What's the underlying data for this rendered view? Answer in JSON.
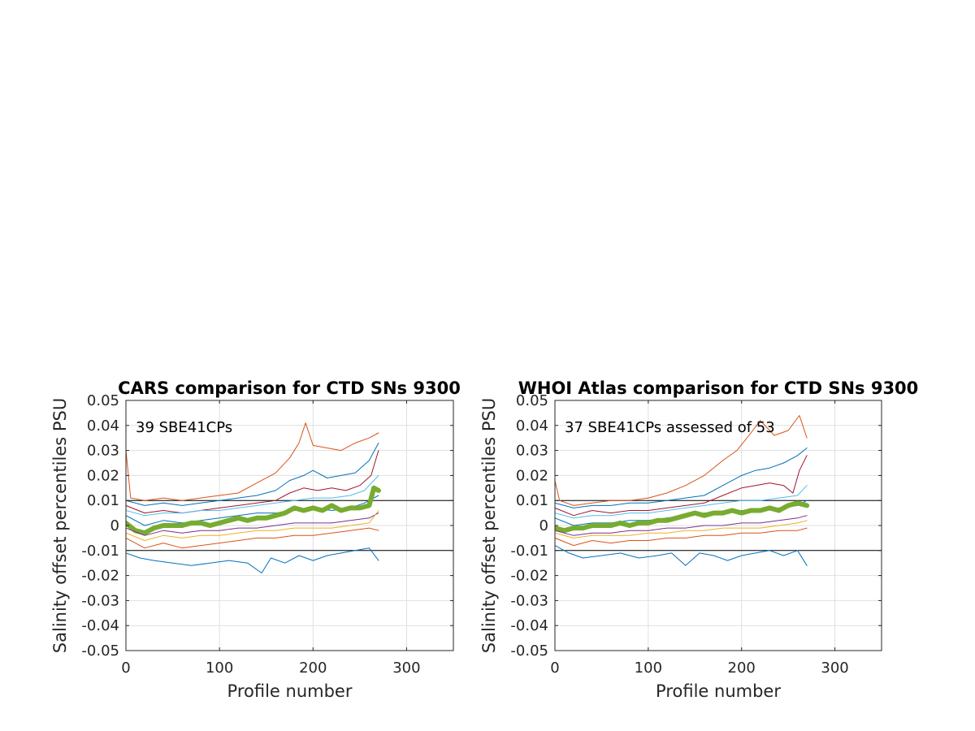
{
  "chart_data": [
    {
      "type": "line",
      "title": "CARS comparison for CTD SNs 9300",
      "xlabel": "Profile number",
      "ylabel": "Salinity offset percentiles PSU",
      "xlim": [
        0,
        350
      ],
      "ylim": [
        -0.05,
        0.05
      ],
      "xticks": [
        0,
        100,
        200,
        300
      ],
      "yticks": [
        -0.05,
        -0.04,
        -0.03,
        -0.02,
        -0.01,
        0,
        0.01,
        0.02,
        0.03,
        0.04,
        0.05
      ],
      "xtick_labels": [
        "0",
        "100",
        "200",
        "300"
      ],
      "ytick_labels": [
        "-0.05",
        "-0.04",
        "-0.03",
        "-0.02",
        "-0.01",
        "0",
        "0.01",
        "0.02",
        "0.03",
        "0.04",
        "0.05"
      ],
      "grid": true,
      "reference_lines_y": [
        0.01,
        -0.01
      ],
      "annotation": "39 SBE41CPs",
      "series": [
        {
          "color": "#D95319",
          "width": 1,
          "x": [
            0,
            5,
            20,
            40,
            60,
            80,
            100,
            120,
            140,
            160,
            175,
            185,
            192,
            200,
            215,
            230,
            245,
            260,
            270
          ],
          "values": [
            0.03,
            0.011,
            0.01,
            0.011,
            0.01,
            0.011,
            0.012,
            0.013,
            0.017,
            0.021,
            0.027,
            0.033,
            0.041,
            0.032,
            0.031,
            0.03,
            0.033,
            0.035,
            0.037
          ]
        },
        {
          "color": "#0072BD",
          "width": 1,
          "x": [
            0,
            20,
            40,
            60,
            80,
            100,
            120,
            140,
            160,
            175,
            190,
            200,
            215,
            230,
            245,
            260,
            270
          ],
          "values": [
            0.01,
            0.008,
            0.009,
            0.008,
            0.009,
            0.01,
            0.011,
            0.012,
            0.014,
            0.018,
            0.02,
            0.022,
            0.019,
            0.02,
            0.021,
            0.026,
            0.033
          ]
        },
        {
          "color": "#A2142F",
          "width": 1,
          "x": [
            0,
            20,
            40,
            60,
            80,
            100,
            120,
            140,
            160,
            175,
            190,
            205,
            220,
            235,
            250,
            262,
            270
          ],
          "values": [
            0.008,
            0.005,
            0.006,
            0.005,
            0.006,
            0.007,
            0.008,
            0.009,
            0.01,
            0.013,
            0.015,
            0.014,
            0.015,
            0.014,
            0.016,
            0.02,
            0.03
          ]
        },
        {
          "color": "#4DBEEE",
          "width": 1,
          "x": [
            0,
            20,
            40,
            60,
            80,
            100,
            120,
            140,
            160,
            180,
            200,
            220,
            240,
            255,
            270
          ],
          "values": [
            0.006,
            0.004,
            0.005,
            0.005,
            0.006,
            0.006,
            0.007,
            0.008,
            0.009,
            0.01,
            0.011,
            0.011,
            0.012,
            0.014,
            0.02
          ]
        },
        {
          "color": "#0072BD",
          "width": 1,
          "x": [
            0,
            20,
            40,
            60,
            80,
            100,
            120,
            140,
            160,
            180,
            200,
            220,
            240,
            255,
            270
          ],
          "values": [
            0.004,
            0.0,
            0.002,
            0.001,
            0.002,
            0.003,
            0.004,
            0.005,
            0.005,
            0.006,
            0.007,
            0.006,
            0.007,
            0.009,
            0.012
          ]
        },
        {
          "color": "#77AC30",
          "width": 6,
          "x": [
            0,
            10,
            20,
            30,
            40,
            50,
            60,
            70,
            80,
            90,
            100,
            110,
            120,
            130,
            140,
            150,
            160,
            170,
            180,
            190,
            200,
            210,
            220,
            230,
            240,
            250,
            260,
            265,
            270
          ],
          "values": [
            0.001,
            -0.002,
            -0.003,
            -0.001,
            0.0,
            0.0,
            0.0,
            0.001,
            0.001,
            0.0,
            0.001,
            0.002,
            0.003,
            0.002,
            0.003,
            0.003,
            0.004,
            0.005,
            0.007,
            0.006,
            0.007,
            0.006,
            0.008,
            0.006,
            0.007,
            0.007,
            0.008,
            0.015,
            0.014
          ]
        },
        {
          "color": "#7E2F8E",
          "width": 1,
          "x": [
            0,
            20,
            40,
            60,
            80,
            100,
            120,
            140,
            160,
            180,
            200,
            220,
            240,
            260,
            270
          ],
          "values": [
            -0.001,
            -0.004,
            -0.002,
            -0.003,
            -0.002,
            -0.002,
            -0.001,
            -0.001,
            0.0,
            0.001,
            0.001,
            0.001,
            0.002,
            0.003,
            0.005
          ]
        },
        {
          "color": "#EDB120",
          "width": 1,
          "x": [
            0,
            20,
            40,
            60,
            80,
            100,
            120,
            140,
            160,
            180,
            200,
            220,
            240,
            260,
            270
          ],
          "values": [
            -0.003,
            -0.006,
            -0.004,
            -0.005,
            -0.004,
            -0.004,
            -0.003,
            -0.002,
            -0.002,
            -0.001,
            -0.001,
            -0.001,
            0.0,
            0.001,
            0.006
          ]
        },
        {
          "color": "#D95319",
          "width": 1,
          "x": [
            0,
            20,
            40,
            60,
            80,
            100,
            120,
            140,
            160,
            180,
            200,
            220,
            240,
            260,
            270
          ],
          "values": [
            -0.005,
            -0.009,
            -0.007,
            -0.009,
            -0.008,
            -0.007,
            -0.006,
            -0.005,
            -0.005,
            -0.004,
            -0.004,
            -0.003,
            -0.002,
            -0.001,
            -0.002
          ]
        },
        {
          "color": "#0072BD",
          "width": 1,
          "x": [
            0,
            15,
            30,
            50,
            70,
            90,
            110,
            130,
            145,
            155,
            170,
            185,
            200,
            215,
            230,
            245,
            260,
            270
          ],
          "values": [
            -0.011,
            -0.013,
            -0.014,
            -0.015,
            -0.016,
            -0.015,
            -0.014,
            -0.015,
            -0.019,
            -0.013,
            -0.015,
            -0.012,
            -0.014,
            -0.012,
            -0.011,
            -0.01,
            -0.009,
            -0.014
          ]
        }
      ]
    },
    {
      "type": "line",
      "title": "WHOI Atlas comparison for CTD SNs 9300",
      "xlabel": "Profile number",
      "ylabel": "Salinity offset percentiles PSU",
      "xlim": [
        0,
        350
      ],
      "ylim": [
        -0.05,
        0.05
      ],
      "xticks": [
        0,
        100,
        200,
        300
      ],
      "yticks": [
        -0.05,
        -0.04,
        -0.03,
        -0.02,
        -0.01,
        0,
        0.01,
        0.02,
        0.03,
        0.04,
        0.05
      ],
      "xtick_labels": [
        "0",
        "100",
        "200",
        "300"
      ],
      "ytick_labels": [
        "-0.05",
        "-0.04",
        "-0.03",
        "-0.02",
        "-0.01",
        "0",
        "0.01",
        "0.02",
        "0.03",
        "0.04",
        "0.05"
      ],
      "grid": true,
      "reference_lines_y": [
        0.01,
        -0.01
      ],
      "annotation": "37 SBE41CPs assessed of 53",
      "series": [
        {
          "color": "#D95319",
          "width": 1,
          "x": [
            0,
            5,
            20,
            40,
            60,
            80,
            100,
            120,
            140,
            160,
            180,
            195,
            210,
            220,
            235,
            250,
            262,
            270
          ],
          "values": [
            0.018,
            0.01,
            0.008,
            0.009,
            0.01,
            0.01,
            0.011,
            0.013,
            0.016,
            0.02,
            0.026,
            0.03,
            0.037,
            0.042,
            0.036,
            0.038,
            0.044,
            0.035
          ]
        },
        {
          "color": "#0072BD",
          "width": 1,
          "x": [
            0,
            20,
            40,
            60,
            80,
            100,
            120,
            140,
            160,
            180,
            200,
            215,
            230,
            245,
            260,
            270
          ],
          "values": [
            0.009,
            0.007,
            0.008,
            0.008,
            0.009,
            0.009,
            0.01,
            0.011,
            0.012,
            0.016,
            0.02,
            0.022,
            0.023,
            0.025,
            0.028,
            0.031
          ]
        },
        {
          "color": "#A2142F",
          "width": 1,
          "x": [
            0,
            20,
            40,
            60,
            80,
            100,
            120,
            140,
            160,
            180,
            200,
            215,
            230,
            245,
            255,
            262,
            270
          ],
          "values": [
            0.007,
            0.004,
            0.006,
            0.005,
            0.006,
            0.006,
            0.007,
            0.008,
            0.009,
            0.012,
            0.015,
            0.016,
            0.017,
            0.016,
            0.013,
            0.022,
            0.028
          ]
        },
        {
          "color": "#4DBEEE",
          "width": 1,
          "x": [
            0,
            20,
            40,
            60,
            80,
            100,
            120,
            140,
            160,
            180,
            200,
            220,
            240,
            260,
            270
          ],
          "values": [
            0.005,
            0.003,
            0.004,
            0.004,
            0.005,
            0.005,
            0.006,
            0.007,
            0.008,
            0.009,
            0.01,
            0.01,
            0.011,
            0.012,
            0.016
          ]
        },
        {
          "color": "#0072BD",
          "width": 1,
          "x": [
            0,
            20,
            40,
            60,
            80,
            100,
            120,
            140,
            160,
            180,
            200,
            220,
            240,
            260,
            270
          ],
          "values": [
            0.003,
            0.0,
            0.001,
            0.001,
            0.002,
            0.002,
            0.003,
            0.004,
            0.005,
            0.005,
            0.006,
            0.006,
            0.007,
            0.008,
            0.01
          ]
        },
        {
          "color": "#77AC30",
          "width": 6,
          "x": [
            0,
            10,
            20,
            30,
            40,
            50,
            60,
            70,
            80,
            90,
            100,
            110,
            120,
            130,
            140,
            150,
            160,
            170,
            180,
            190,
            200,
            210,
            220,
            230,
            240,
            250,
            260,
            270
          ],
          "values": [
            -0.001,
            -0.002,
            -0.001,
            -0.001,
            0.0,
            0.0,
            0.0,
            0.001,
            0.0,
            0.001,
            0.001,
            0.002,
            0.002,
            0.003,
            0.004,
            0.005,
            0.004,
            0.005,
            0.005,
            0.006,
            0.005,
            0.006,
            0.006,
            0.007,
            0.006,
            0.008,
            0.009,
            0.008
          ]
        },
        {
          "color": "#7E2F8E",
          "width": 1,
          "x": [
            0,
            20,
            40,
            60,
            80,
            100,
            120,
            140,
            160,
            180,
            200,
            220,
            240,
            260,
            270
          ],
          "values": [
            -0.002,
            -0.004,
            -0.003,
            -0.003,
            -0.002,
            -0.002,
            -0.001,
            -0.001,
            0.0,
            0.0,
            0.001,
            0.001,
            0.002,
            0.003,
            0.004
          ]
        },
        {
          "color": "#EDB120",
          "width": 1,
          "x": [
            0,
            20,
            40,
            60,
            80,
            100,
            120,
            140,
            160,
            180,
            200,
            220,
            240,
            260,
            270
          ],
          "values": [
            -0.003,
            -0.005,
            -0.004,
            -0.004,
            -0.004,
            -0.003,
            -0.003,
            -0.002,
            -0.002,
            -0.001,
            -0.001,
            -0.001,
            0.0,
            0.001,
            0.002
          ]
        },
        {
          "color": "#D95319",
          "width": 1,
          "x": [
            0,
            20,
            40,
            60,
            80,
            100,
            120,
            140,
            160,
            180,
            200,
            220,
            240,
            260,
            270
          ],
          "values": [
            -0.005,
            -0.008,
            -0.006,
            -0.007,
            -0.006,
            -0.006,
            -0.005,
            -0.005,
            -0.004,
            -0.004,
            -0.003,
            -0.003,
            -0.002,
            -0.002,
            -0.001
          ]
        },
        {
          "color": "#0072BD",
          "width": 1,
          "x": [
            0,
            15,
            30,
            50,
            70,
            90,
            110,
            125,
            140,
            155,
            170,
            185,
            200,
            215,
            230,
            245,
            260,
            270
          ],
          "values": [
            -0.008,
            -0.011,
            -0.013,
            -0.012,
            -0.011,
            -0.013,
            -0.012,
            -0.011,
            -0.016,
            -0.011,
            -0.012,
            -0.014,
            -0.012,
            -0.011,
            -0.01,
            -0.012,
            -0.01,
            -0.016
          ]
        }
      ]
    }
  ]
}
